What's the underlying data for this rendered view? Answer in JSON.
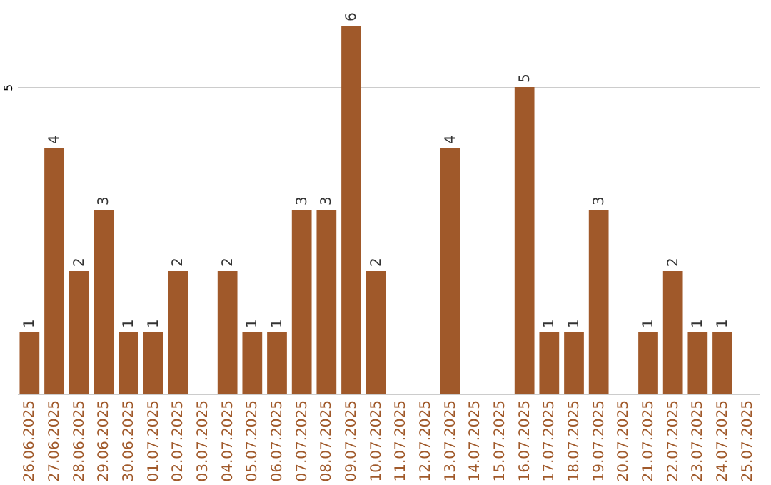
{
  "chart_data": {
    "type": "bar",
    "categories": [
      "26.06.2025",
      "27.06.2025",
      "28.06.2025",
      "29.06.2025",
      "30.06.2025",
      "01.07.2025",
      "02.07.2025",
      "03.07.2025",
      "04.07.2025",
      "05.07.2025",
      "06.07.2025",
      "07.07.2025",
      "08.07.2025",
      "09.07.2025",
      "10.07.2025",
      "11.07.2025",
      "12.07.2025",
      "13.07.2025",
      "14.07.2025",
      "15.07.2025",
      "16.07.2025",
      "17.07.2025",
      "18.07.2025",
      "19.07.2025",
      "20.07.2025",
      "21.07.2025",
      "22.07.2025",
      "23.07.2025",
      "24.07.2025",
      "25.07.2025"
    ],
    "values": [
      1,
      4,
      2,
      3,
      1,
      1,
      2,
      0,
      2,
      1,
      1,
      3,
      3,
      6,
      2,
      0,
      0,
      4,
      0,
      0,
      5,
      1,
      1,
      3,
      0,
      1,
      2,
      1,
      1,
      0
    ],
    "value_labels": [
      "1",
      "4",
      "2",
      "3",
      "1",
      "1",
      "2",
      null,
      "2",
      "1",
      "1",
      "3",
      "3",
      "6",
      "2",
      null,
      null,
      "4",
      null,
      null,
      "5",
      "1",
      "1",
      "3",
      null,
      "1",
      "2",
      "1",
      "1",
      null
    ],
    "color": "#a0592a",
    "ylim": [
      0,
      6
    ],
    "yticks": [
      5
    ],
    "grid": "y"
  }
}
